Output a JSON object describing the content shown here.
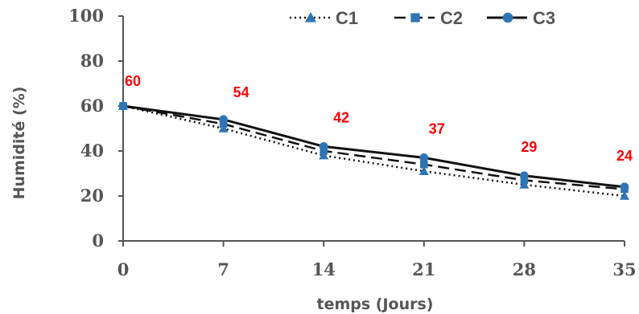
{
  "colors": {
    "line": "#111111",
    "marker": "#2E75B6",
    "axis": "#555555",
    "data_label": "#FF0000"
  },
  "chart_data": {
    "type": "line",
    "title": "",
    "xlabel": "temps (Jours)",
    "ylabel": "Humidité (%)",
    "x": [
      0,
      7,
      14,
      21,
      28,
      35
    ],
    "xlim": [
      0,
      35
    ],
    "ylim": [
      0,
      100
    ],
    "yticks": [
      0,
      20,
      40,
      60,
      80,
      100
    ],
    "grid": false,
    "legend_position": "top-right",
    "series": [
      {
        "name": "C1",
        "marker": "triangle",
        "dash": "dotted",
        "values": [
          60,
          50,
          38,
          31,
          25,
          20
        ]
      },
      {
        "name": "C2",
        "marker": "square",
        "dash": "dashed",
        "values": [
          60,
          52,
          40,
          34,
          27,
          23
        ]
      },
      {
        "name": "C3",
        "marker": "circle",
        "dash": "solid",
        "values": [
          60,
          54,
          42,
          37,
          29,
          24
        ]
      }
    ],
    "data_labels": [
      {
        "x": 0,
        "text": "60"
      },
      {
        "x": 7,
        "text": "54"
      },
      {
        "x": 14,
        "text": "42"
      },
      {
        "x": 21,
        "text": "37"
      },
      {
        "x": 28,
        "text": "29"
      },
      {
        "x": 35,
        "text": "24"
      }
    ]
  }
}
